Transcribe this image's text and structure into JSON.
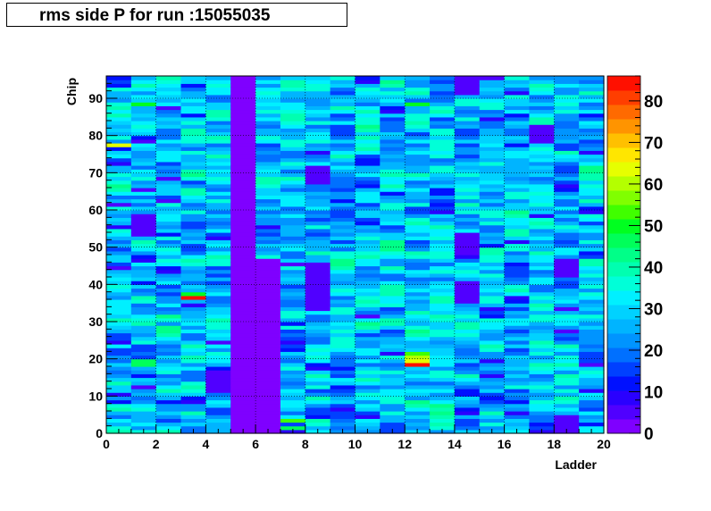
{
  "title": "rms side P for run :15055035",
  "chart_data": {
    "type": "heatmap",
    "title": "rms side P for run :15055035",
    "xlabel": "Ladder",
    "ylabel": "Chip",
    "xlim": [
      0,
      20
    ],
    "ylim": [
      0,
      96
    ],
    "x_bins": 20,
    "y_bins": 96,
    "x_ticks": [
      0,
      2,
      4,
      6,
      8,
      10,
      12,
      14,
      16,
      18,
      20
    ],
    "y_ticks": [
      0,
      10,
      20,
      30,
      40,
      50,
      60,
      70,
      80,
      90
    ],
    "z_range": [
      0,
      86
    ],
    "z_ticks": [
      0,
      10,
      20,
      30,
      40,
      50,
      60,
      70,
      80
    ],
    "grid": true,
    "palette": [
      "#7f00ff",
      "#5000ff",
      "#2a00ff",
      "#0010ff",
      "#0040ff",
      "#0070ff",
      "#0094ff",
      "#00b4ff",
      "#00d2ff",
      "#00f0ff",
      "#00ffd8",
      "#00ffb0",
      "#00ff88",
      "#00ff5a",
      "#00ff20",
      "#40ff00",
      "#80ff00",
      "#b4ff00",
      "#e6ff00",
      "#ffe600",
      "#ffc000",
      "#ff9400",
      "#ff6a00",
      "#ff3e00",
      "#ff1000"
    ],
    "columns_low": [
      5
    ],
    "regions": [
      {
        "ladder": 6,
        "chip_range": [
          0,
          47
        ],
        "value": 3
      },
      {
        "ladder": 8,
        "chip_range": [
          33,
          46
        ],
        "value": 4
      },
      {
        "ladder": 8,
        "chip_range": [
          67,
          72
        ],
        "value": 4
      },
      {
        "ladder": 4,
        "chip_range": [
          11,
          17
        ],
        "value": 5
      },
      {
        "ladder": 14,
        "chip_range": [
          48,
          54
        ],
        "value": 5
      },
      {
        "ladder": 14,
        "chip_range": [
          35,
          41
        ],
        "value": 5
      },
      {
        "ladder": 17,
        "chip_range": [
          78,
          83
        ],
        "value": 4
      },
      {
        "ladder": 18,
        "chip_range": [
          42,
          47
        ],
        "value": 5
      },
      {
        "ladder": 1,
        "chip_range": [
          53,
          59
        ],
        "value": 5
      },
      {
        "ladder": 14,
        "chip_range": [
          91,
          96
        ],
        "value": 6
      },
      {
        "ladder": 18,
        "chip_range": [
          0,
          5
        ],
        "value": 5
      }
    ],
    "hot_cells": [
      {
        "ladder": 3,
        "chip": 36,
        "value": 85
      },
      {
        "ladder": 3,
        "chip": 37,
        "value": 50
      },
      {
        "ladder": 12,
        "chip": 18,
        "value": 84
      },
      {
        "ladder": 12,
        "chip": 19,
        "value": 62
      },
      {
        "ladder": 12,
        "chip": 20,
        "value": 60
      },
      {
        "ladder": 12,
        "chip": 21,
        "value": 55
      },
      {
        "ladder": 7,
        "chip": 3,
        "value": 55
      },
      {
        "ladder": 7,
        "chip": 1,
        "value": 45
      },
      {
        "ladder": 1,
        "chip": 19,
        "value": 48
      },
      {
        "ladder": 1,
        "chip": 18,
        "value": 45
      },
      {
        "ladder": 0,
        "chip": 77,
        "value": 62
      },
      {
        "ladder": 1,
        "chip": 88,
        "value": 50
      },
      {
        "ladder": 12,
        "chip": 88,
        "value": 50
      }
    ],
    "typical_range": [
      12,
      45
    ]
  }
}
